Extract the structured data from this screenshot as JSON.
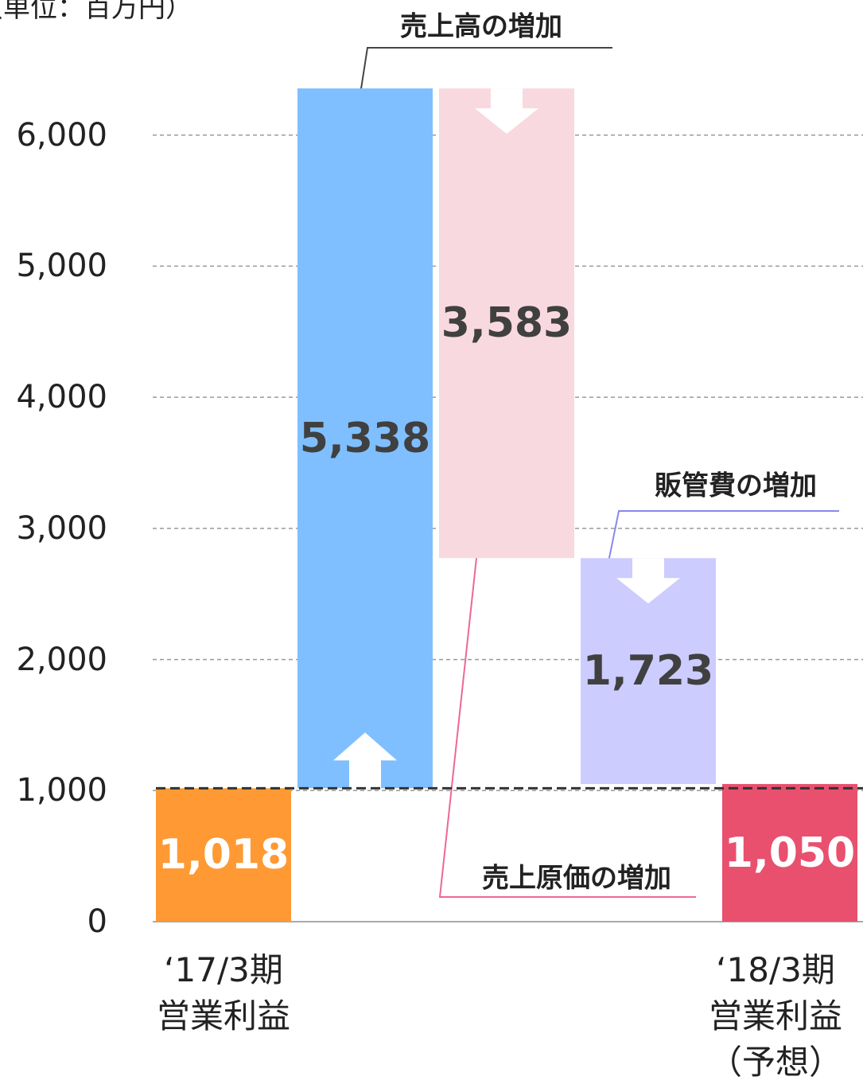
{
  "chart_data": {
    "type": "waterfall",
    "unit_label": "（単位：百万円）",
    "categories": [
      "‘17/3期\n営業利益",
      "売上高の増加",
      "売上原価の増加",
      "販管費の増加",
      "‘18/3期\n営業利益\n（予想）"
    ],
    "values": [
      1018,
      5338,
      -3583,
      -1723,
      1050
    ],
    "value_labels": [
      "1,018",
      "5,338",
      "3,583",
      "1,723",
      "1,050"
    ],
    "bar_kinds": [
      "total",
      "delta",
      "delta",
      "delta",
      "total"
    ],
    "colors": [
      "#ff9933",
      "#80bfff",
      "#f9d9e0",
      "#ccccff",
      "#e8506e"
    ],
    "ylim": [
      0,
      7000
    ],
    "yticks": [
      0,
      {
        "value": 1000,
        "label": "1,000"
      },
      {
        "value": 2000,
        "label": "2,000"
      },
      {
        "value": 3000,
        "label": "3,000"
      },
      {
        "value": 4000,
        "label": "4,000"
      },
      {
        "value": 5000,
        "label": "5,000"
      },
      {
        "value": 6000,
        "label": "6,000"
      }
    ],
    "grid": true
  }
}
